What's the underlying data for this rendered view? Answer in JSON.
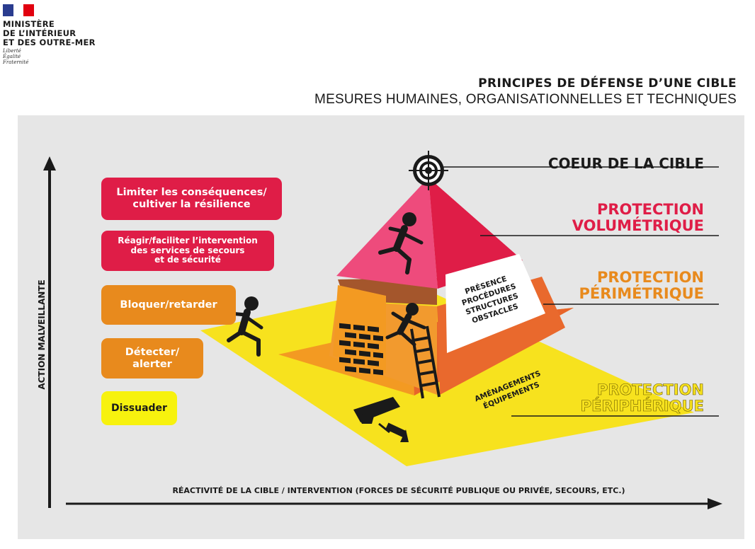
{
  "header": {
    "logo_lines": [
      "MINISTÈRE",
      "DE L’INTÉRIEUR",
      "ET DES OUTRE-MER"
    ],
    "motto_lines": [
      "Liberté",
      "Égalité",
      "Fraternité"
    ],
    "title": "PRINCIPES DE DÉFENSE D’UNE CIBLE",
    "subtitle": "MESURES HUMAINES, ORGANISATIONNELLES ET TECHNIQUES"
  },
  "colors": {
    "crimson": "#df1d47",
    "orange": "#e88a1d",
    "yellow": "#f7e21e",
    "pink": "#ee4b7c",
    "panel": "#e6e6e6",
    "dark": "#1a1a1a"
  },
  "actions": [
    {
      "label_lines": [
        "Limiter les conséquences/",
        "cultiver la résilience"
      ],
      "color": "#df1d47"
    },
    {
      "label_lines": [
        "Réagir/faciliter l’intervention",
        "des services de secours",
        "et de sécurité"
      ],
      "color": "#df1d47"
    },
    {
      "label_lines": [
        "Bloquer/retarder"
      ],
      "color": "#e88a1d"
    },
    {
      "label_lines": [
        "Détecter/",
        "alerter"
      ],
      "color": "#e88a1d"
    },
    {
      "label_lines": [
        "Dissuader"
      ],
      "color": "#f7f20e"
    }
  ],
  "levels": [
    {
      "label_lines": [
        "COEUR DE LA CIBLE"
      ],
      "color": "#1a1a1a"
    },
    {
      "label_lines": [
        "PROTECTION",
        "VOLUMÉTRIQUE"
      ],
      "color": "#df1d47"
    },
    {
      "label_lines": [
        "PROTECTION",
        "PÉRIMÉTRIQUE"
      ],
      "color": "#e88a1d"
    },
    {
      "label_lines": [
        "PROTECTION",
        "PÉRIPHÉRIQUE"
      ],
      "color": "#f7e21e"
    }
  ],
  "pyramid_labels": {
    "measures": [
      "PRÉSENCE",
      "PROCÉDURES",
      "STRUCTURES",
      "OBSTACLES"
    ],
    "equipment": [
      "AMÉNAGEMENTS",
      "ÉQUIPEMENTS"
    ]
  },
  "axes": {
    "y_label": "ACTION MALVEILLANTE",
    "x_label": "RÉACTIVITÉ DE LA CIBLE / INTERVENTION (FORCES DE SÉCURITÉ PUBLIQUE OU PRIVÉE, SECOURS, ETC.)"
  },
  "icons": [
    "marianne-logo",
    "target-icon",
    "running-intruder-icon",
    "climbing-intruder-icon",
    "brick-wall-icon",
    "ladder-icon",
    "security-camera-icon"
  ]
}
